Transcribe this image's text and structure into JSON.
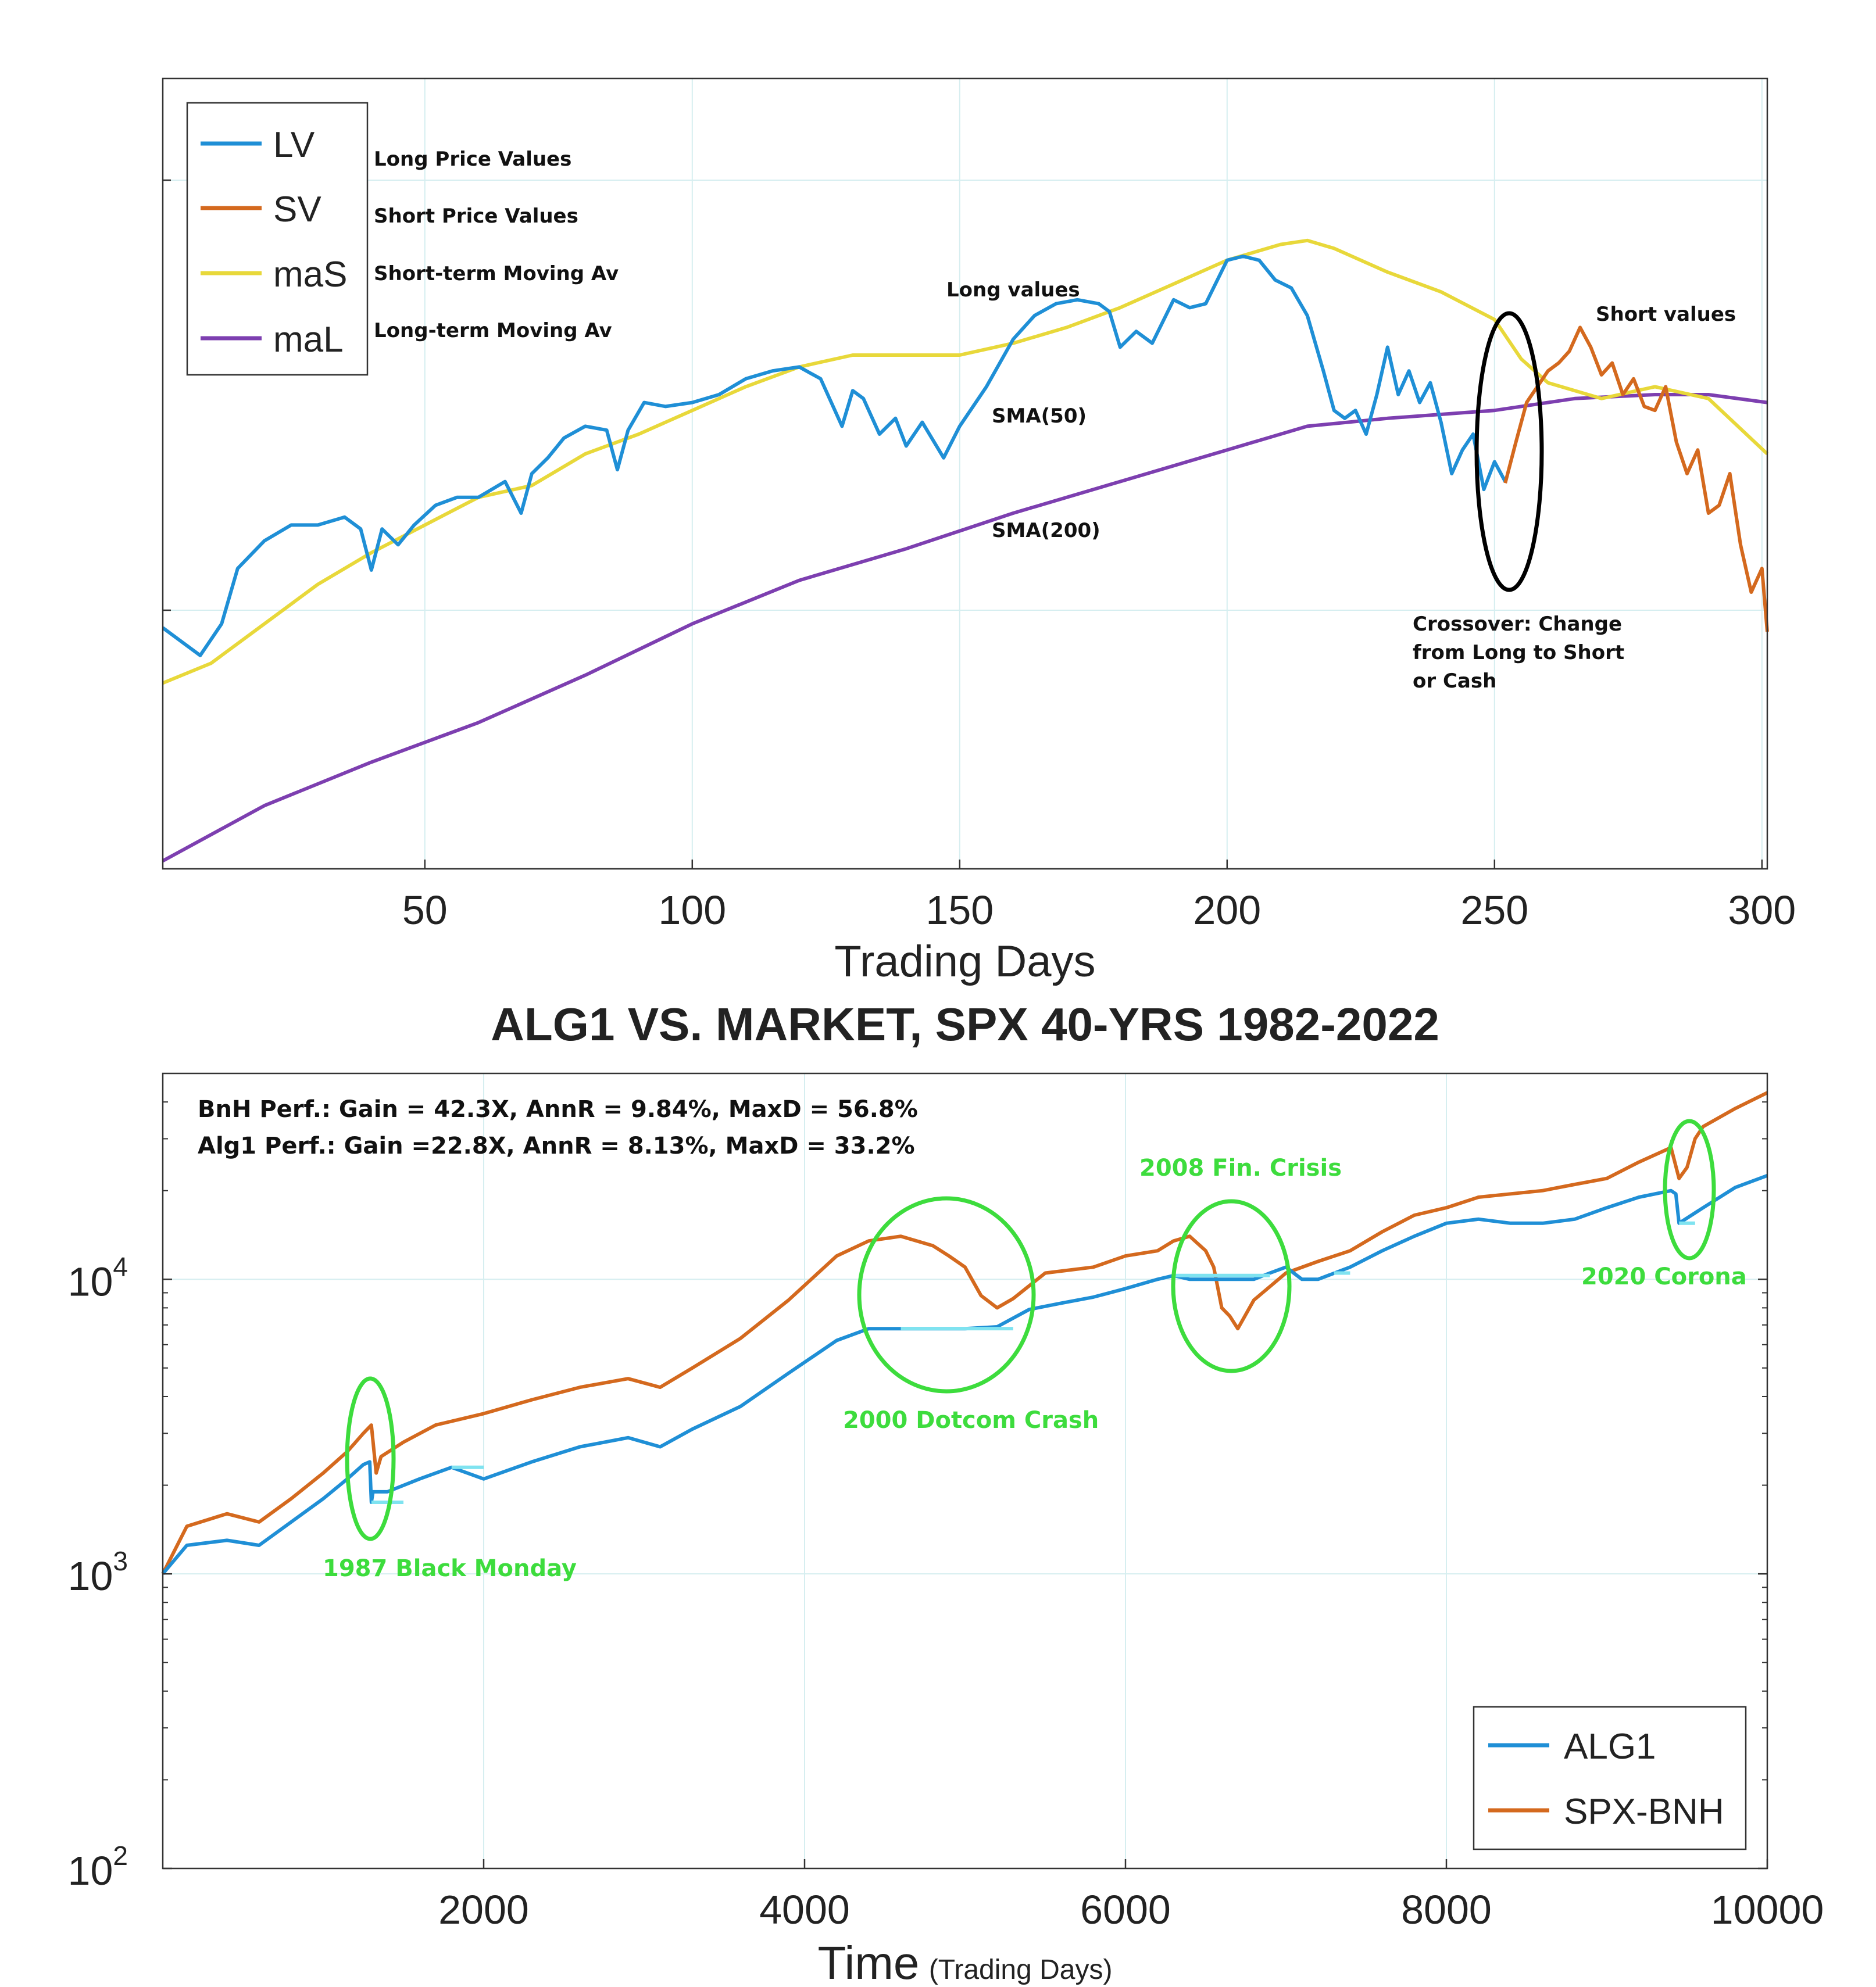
{
  "colors": {
    "lv": "#1f8fd6",
    "sv": "#d4691e",
    "mas": "#e8d83a",
    "mal": "#7d3fb0",
    "alg1": "#1f8fd6",
    "alg1_cash": "#7fe3f0",
    "spx": "#d4691e",
    "annotation_green": "#3ddc3d",
    "crossover_ellipse": "#000000"
  },
  "chart_data": [
    {
      "type": "line",
      "title": "",
      "xlabel": "Trading Days",
      "ylabel": "",
      "xlim": [
        1,
        301
      ],
      "ylim": [
        0,
        100
      ],
      "x_ticks": [
        "50",
        "100",
        "150",
        "200",
        "250",
        "300"
      ],
      "grid": true,
      "legend_position": "top-left",
      "legend": [
        {
          "key": "lv",
          "label": "LV",
          "description": "Long Price Values"
        },
        {
          "key": "sv",
          "label": "SV",
          "description": "Short Price Values"
        },
        {
          "key": "mas",
          "label": "maS",
          "description": "Short-term Moving Av"
        },
        {
          "key": "mal",
          "label": "maL",
          "description": "Long-term Moving Av"
        }
      ],
      "series": [
        {
          "name": "LV",
          "x": [
            1,
            5,
            8,
            12,
            15,
            20,
            25,
            30,
            35,
            38,
            40,
            42,
            45,
            48,
            52,
            56,
            60,
            65,
            68,
            70,
            73,
            76,
            80,
            84,
            86,
            88,
            91,
            95,
            100,
            105,
            110,
            115,
            120,
            124,
            128,
            130,
            132,
            135,
            138,
            140,
            143,
            147,
            150,
            155,
            160,
            164,
            168,
            172,
            176,
            178,
            180,
            183,
            186,
            190,
            193,
            196,
            200,
            203,
            206,
            209,
            212,
            215,
            218,
            220,
            222,
            224,
            226,
            228,
            230,
            232,
            234,
            236,
            238,
            240,
            242,
            244,
            246,
            248,
            250,
            252
          ],
          "values": [
            30.5,
            28.5,
            27,
            31,
            38,
            41.5,
            43.5,
            43.5,
            44.5,
            43,
            37.8,
            43,
            41,
            43.5,
            46,
            47,
            47,
            49,
            45,
            50,
            52,
            54.5,
            56,
            55.5,
            50.5,
            55.5,
            59,
            58.5,
            59,
            60,
            62,
            63,
            63.5,
            62,
            56,
            60.5,
            59.5,
            55,
            57,
            53.5,
            56.5,
            52,
            56,
            61,
            67,
            70,
            71.5,
            72,
            71.5,
            70.5,
            66,
            68,
            66.5,
            72,
            71,
            71.5,
            77,
            77.5,
            77,
            74.5,
            73.5,
            70,
            63,
            58,
            57,
            58,
            55,
            60,
            66,
            60,
            63,
            59,
            61.5,
            56.5,
            50,
            53,
            55,
            48,
            51.5,
            49
          ]
        },
        {
          "name": "SV",
          "x": [
            252,
            254,
            256,
            258,
            260,
            262,
            264,
            266,
            268,
            270,
            272,
            274,
            276,
            278,
            280,
            282,
            284,
            286,
            288,
            290,
            292,
            294,
            296,
            298,
            300,
            301
          ],
          "values": [
            48.8,
            54,
            59,
            61,
            63,
            64,
            65.5,
            68.5,
            66,
            62.5,
            64,
            60,
            62,
            58.5,
            58,
            61,
            54,
            50,
            53,
            45,
            46,
            50,
            41,
            35,
            38,
            30
          ]
        },
        {
          "name": "maS",
          "x": [
            1,
            10,
            20,
            30,
            40,
            50,
            60,
            70,
            80,
            90,
            100,
            110,
            120,
            130,
            140,
            150,
            160,
            170,
            180,
            190,
            200,
            210,
            215,
            220,
            230,
            240,
            250,
            255,
            260,
            270,
            280,
            290,
            301
          ],
          "values": [
            23.5,
            26,
            31,
            36,
            40,
            43.5,
            47,
            48.5,
            52.5,
            55,
            58,
            61,
            63.5,
            65,
            65,
            65,
            66.5,
            68.5,
            71,
            74,
            77,
            79,
            79.5,
            78.5,
            75.5,
            73,
            69.5,
            64.5,
            61.5,
            59.5,
            61,
            59.5,
            52.5
          ]
        },
        {
          "name": "maL",
          "x": [
            1,
            20,
            40,
            60,
            80,
            100,
            120,
            140,
            160,
            180,
            200,
            215,
            230,
            250,
            265,
            280,
            290,
            301
          ],
          "values": [
            1,
            8,
            13.5,
            18.5,
            24.5,
            31,
            36.5,
            40.5,
            45,
            49,
            53,
            56,
            57,
            58,
            59.5,
            60,
            60,
            59
          ]
        }
      ],
      "annotations": [
        {
          "key": "long_values",
          "text": "Long values"
        },
        {
          "key": "short_values",
          "text": "Short values"
        },
        {
          "key": "sma50",
          "text": "SMA(50)"
        },
        {
          "key": "sma200",
          "text": "SMA(200)"
        },
        {
          "key": "crossover",
          "lines": [
            "Crossover: Change",
            "from Long to Short",
            "or Cash"
          ]
        }
      ]
    },
    {
      "type": "line",
      "title": "ALG1 VS. MARKET, SPX 40-YRS 1982-2022",
      "xlabel": "Time",
      "xlabel_suffix": "(Trading Days)",
      "ylabel": "",
      "y_scale": "log",
      "xlim": [
        0,
        10000
      ],
      "ylim": [
        100,
        50000
      ],
      "x_ticks": [
        "2000",
        "4000",
        "6000",
        "8000",
        "10000"
      ],
      "y_ticks": [
        {
          "value": 100,
          "base": "10",
          "exp": "2"
        },
        {
          "value": 1000,
          "base": "10",
          "exp": "3"
        },
        {
          "value": 10000,
          "base": "10",
          "exp": "4"
        }
      ],
      "grid": true,
      "legend_position": "bottom-right",
      "legend": [
        {
          "key": "alg1",
          "label": "ALG1"
        },
        {
          "key": "spx",
          "label": "SPX-BNH"
        }
      ],
      "stats": [
        "BnH Perf.: Gain = 42.3X, AnnR = 9.84%, MaxD = 56.8%",
        "Alg1 Perf.: Gain =22.8X, AnnR = 8.13%, MaxD = 33.2%"
      ],
      "series": [
        {
          "name": "SPX-BNH",
          "x": [
            0,
            150,
            400,
            600,
            800,
            1000,
            1150,
            1250,
            1300,
            1330,
            1360,
            1500,
            1700,
            2000,
            2300,
            2600,
            2900,
            3100,
            3300,
            3600,
            3900,
            4200,
            4400,
            4600,
            4800,
            4900,
            5000,
            5100,
            5200,
            5300,
            5500,
            5800,
            6000,
            6200,
            6300,
            6400,
            6500,
            6550,
            6600,
            6650,
            6700,
            6800,
            7000,
            7200,
            7400,
            7600,
            7800,
            8000,
            8200,
            8400,
            8600,
            8800,
            9000,
            9200,
            9400,
            9450,
            9500,
            9550,
            9600,
            9800,
            10000
          ],
          "values": [
            1000,
            1450,
            1600,
            1500,
            1800,
            2200,
            2600,
            3000,
            3200,
            2200,
            2500,
            2800,
            3200,
            3500,
            3900,
            4300,
            4600,
            4300,
            5000,
            6300,
            8500,
            12000,
            13500,
            14000,
            13000,
            12000,
            11000,
            8800,
            8000,
            8600,
            10500,
            11000,
            12000,
            12500,
            13500,
            14000,
            12500,
            11000,
            8000,
            7500,
            6800,
            8500,
            10500,
            11500,
            12500,
            14500,
            16500,
            17500,
            19000,
            19500,
            20000,
            21000,
            22000,
            25000,
            28000,
            22000,
            24000,
            30000,
            33000,
            38000,
            43000
          ]
        },
        {
          "name": "ALG1",
          "x": [
            0,
            150,
            400,
            600,
            800,
            1000,
            1150,
            1250,
            1290,
            1300,
            1310,
            1400,
            1600,
            1800,
            2000,
            2300,
            2600,
            2900,
            3100,
            3300,
            3600,
            3900,
            4200,
            4400,
            4600,
            4800,
            5000,
            5200,
            5400,
            5600,
            5800,
            6000,
            6200,
            6300,
            6400,
            6600,
            6800,
            6900,
            7000,
            7100,
            7200,
            7400,
            7600,
            7800,
            8000,
            8200,
            8400,
            8600,
            8800,
            9000,
            9200,
            9400,
            9430,
            9450,
            9600,
            9800,
            10000
          ],
          "values": [
            1000,
            1250,
            1300,
            1250,
            1500,
            1800,
            2100,
            2350,
            2400,
            1750,
            1900,
            1900,
            2100,
            2300,
            2100,
            2400,
            2700,
            2900,
            2700,
            3100,
            3700,
            4800,
            6200,
            6800,
            6800,
            6800,
            6800,
            6900,
            7900,
            8300,
            8700,
            9300,
            10000,
            10300,
            10000,
            10000,
            10000,
            10500,
            11000,
            10000,
            10000,
            11000,
            12500,
            14000,
            15500,
            16000,
            15500,
            15500,
            16000,
            17500,
            19000,
            20000,
            19500,
            15500,
            17500,
            20500,
            22500
          ]
        }
      ],
      "cash_segments": [
        [
          1300,
          1500
        ],
        [
          1800,
          2000
        ],
        [
          4600,
          5300
        ],
        [
          6300,
          6900
        ],
        [
          7300,
          7400
        ],
        [
          9450,
          9550
        ]
      ],
      "annotations": [
        {
          "key": "black_monday",
          "text": "1987 Black Monday"
        },
        {
          "key": "dotcom",
          "text": "2000 Dotcom Crash"
        },
        {
          "key": "fin_crisis",
          "text": "2008 Fin. Crisis"
        },
        {
          "key": "corona",
          "text": "2020 Corona"
        }
      ]
    }
  ]
}
